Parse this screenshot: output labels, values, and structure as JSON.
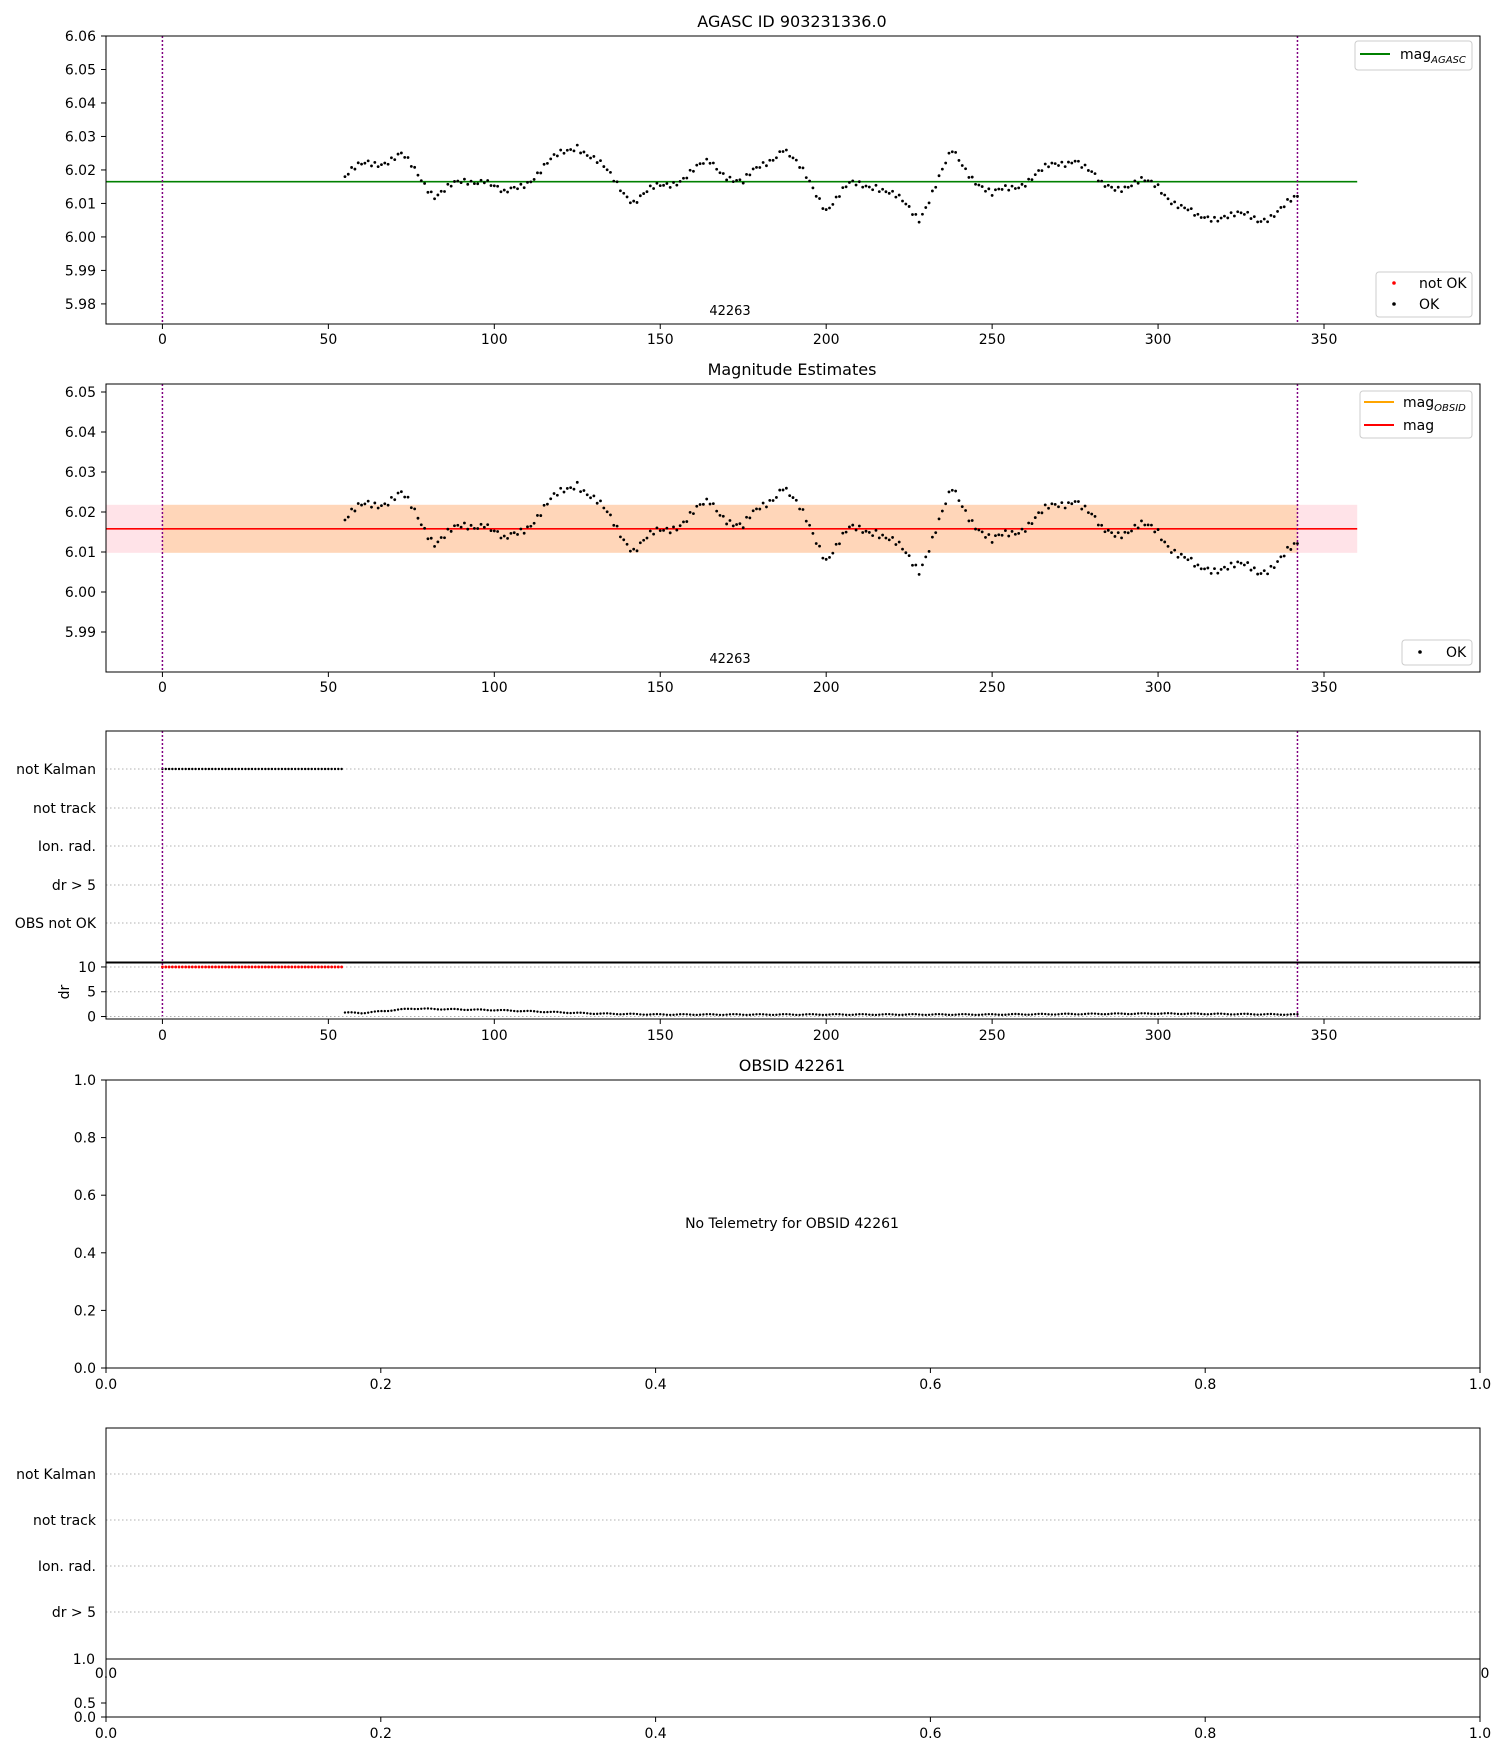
{
  "chart_data": [
    {
      "type": "scatter",
      "title": "AGASC ID 903231336.0",
      "annotation": "42263",
      "ylim": [
        5.974,
        6.06
      ],
      "xlim": [
        -17,
        397
      ],
      "xticks": [
        0,
        50,
        100,
        150,
        200,
        250,
        300,
        350
      ],
      "yticks": [
        5.98,
        5.99,
        6.0,
        6.01,
        6.02,
        6.03,
        6.04,
        6.05,
        6.06
      ],
      "ytick_labels": [
        "5.98",
        "5.99",
        "6.00",
        "6.01",
        "6.02",
        "6.03",
        "6.04",
        "6.05",
        "6.06"
      ],
      "xtick_labels": [
        "0",
        "50",
        "100",
        "150",
        "200",
        "250",
        "300",
        "350"
      ],
      "hline": {
        "y": 6.0165,
        "x_range": [
          -17,
          360
        ],
        "color": "#008000"
      },
      "vlines": [
        0,
        342
      ],
      "legend_top": {
        "position": "top-right",
        "items": [
          {
            "label": "mag",
            "sub": "AGASC",
            "color": "#008000"
          }
        ]
      },
      "legend_bottom": {
        "position": "bottom-right",
        "items": [
          {
            "label": "not OK",
            "color": "#ff0000"
          },
          {
            "label": "OK",
            "color": "#000000"
          }
        ]
      },
      "series_ok": {
        "x_range": [
          55,
          342
        ],
        "control_x": [
          55,
          62,
          72,
          82,
          97,
          103,
          125,
          142,
          165,
          175,
          187,
          200,
          207,
          215,
          228,
          238,
          250,
          260,
          275,
          283,
          295,
          300,
          312,
          320,
          330,
          342
        ],
        "control_y": [
          6.018,
          6.022,
          6.024,
          6.013,
          6.018,
          6.012,
          6.028,
          6.011,
          6.022,
          6.016,
          6.027,
          6.009,
          6.015,
          6.016,
          6.006,
          6.025,
          6.012,
          6.017,
          6.024,
          6.015,
          6.016,
          6.015,
          6.005,
          6.007,
          6.005,
          6.011
        ]
      }
    },
    {
      "type": "scatter",
      "title": "Magnitude Estimates",
      "annotation": "42263",
      "ylim": [
        5.98,
        6.052
      ],
      "xlim": [
        -17,
        397
      ],
      "xticks": [
        0,
        50,
        100,
        150,
        200,
        250,
        300,
        350
      ],
      "yticks": [
        5.99,
        6.0,
        6.01,
        6.02,
        6.03,
        6.04,
        6.05
      ],
      "ytick_labels": [
        "5.99",
        "6.00",
        "6.01",
        "6.02",
        "6.03",
        "6.04",
        "6.05"
      ],
      "xtick_labels": [
        "0",
        "50",
        "100",
        "150",
        "200",
        "250",
        "300",
        "350"
      ],
      "mag_line": {
        "y": 6.0158,
        "color": "#ff0000"
      },
      "band": {
        "y_low": 6.0098,
        "y_high": 6.0218,
        "full_color": "#ffc0cb",
        "obsid_color": "#ffa500"
      },
      "vlines": [
        0,
        342
      ],
      "legend_top": {
        "position": "top-right",
        "items": [
          {
            "label": "mag",
            "sub": "OBSID",
            "color": "#ffa500"
          },
          {
            "label": "mag",
            "sub": "",
            "color": "#ff0000"
          }
        ]
      },
      "legend_bottom": {
        "position": "bottom-right",
        "items": [
          {
            "label": "OK",
            "color": "#000000"
          }
        ]
      }
    },
    {
      "type": "scatter",
      "title": "",
      "flag_labels": [
        "not Kalman",
        "not track",
        "Ion. rad.",
        "dr > 5",
        "OBS not OK"
      ],
      "flag_not_kalman_x_range": [
        0,
        54
      ],
      "dr": {
        "ylabel": "dr",
        "ylim": [
          -0.5,
          11
        ],
        "yticks": [
          0,
          5,
          10
        ],
        "ytick_labels": [
          "0",
          "5",
          "10"
        ],
        "high_x_range": [
          0,
          54
        ],
        "high_value": 10,
        "low_control_x": [
          55,
          60,
          75,
          100,
          130,
          150,
          200,
          250,
          300,
          342
        ],
        "low_control_y": [
          0.8,
          0.7,
          1.6,
          1.3,
          0.6,
          0.4,
          0.4,
          0.4,
          0.6,
          0.4
        ]
      },
      "xlim": [
        -17,
        397
      ],
      "xticks": [
        0,
        50,
        100,
        150,
        200,
        250,
        300,
        350
      ],
      "xtick_labels": [
        "0",
        "50",
        "100",
        "150",
        "200",
        "250",
        "300",
        "350"
      ],
      "vlines": [
        0,
        342
      ]
    },
    {
      "type": "scatter",
      "title": "OBSID 42261",
      "message": "No Telemetry for OBSID 42261",
      "xlim": [
        0,
        1
      ],
      "ylim": [
        0,
        1
      ],
      "xticks": [
        0,
        0.2,
        0.4,
        0.6,
        0.8,
        1.0
      ],
      "yticks": [
        0,
        0.2,
        0.4,
        0.6,
        0.8,
        1.0
      ],
      "xtick_labels": [
        "0.0",
        "0.2",
        "0.4",
        "0.6",
        "0.8",
        "1.0"
      ],
      "ytick_labels": [
        "0.0",
        "0.2",
        "0.4",
        "0.6",
        "0.8",
        "1.0"
      ]
    },
    {
      "type": "scatter",
      "title": "",
      "flag_labels": [
        "not Kalman",
        "not track",
        "Ion. rad.",
        "dr > 5"
      ],
      "overlap_tick_labels": {
        "top_y": "1.0",
        "left_x": "0.0",
        "right_x": "0"
      },
      "bottom": {
        "ylim": [
          0,
          1
        ],
        "yticks": [
          0,
          0.5,
          1.0
        ],
        "ytick_labels": [
          "0.0",
          "0.5",
          "1.0"
        ],
        "xticks": [
          0,
          0.2,
          0.4,
          0.6,
          0.8,
          1.0
        ],
        "xtick_labels": [
          "0.0",
          "0.2",
          "0.4",
          "0.6",
          "0.8",
          "1.0"
        ]
      }
    }
  ]
}
